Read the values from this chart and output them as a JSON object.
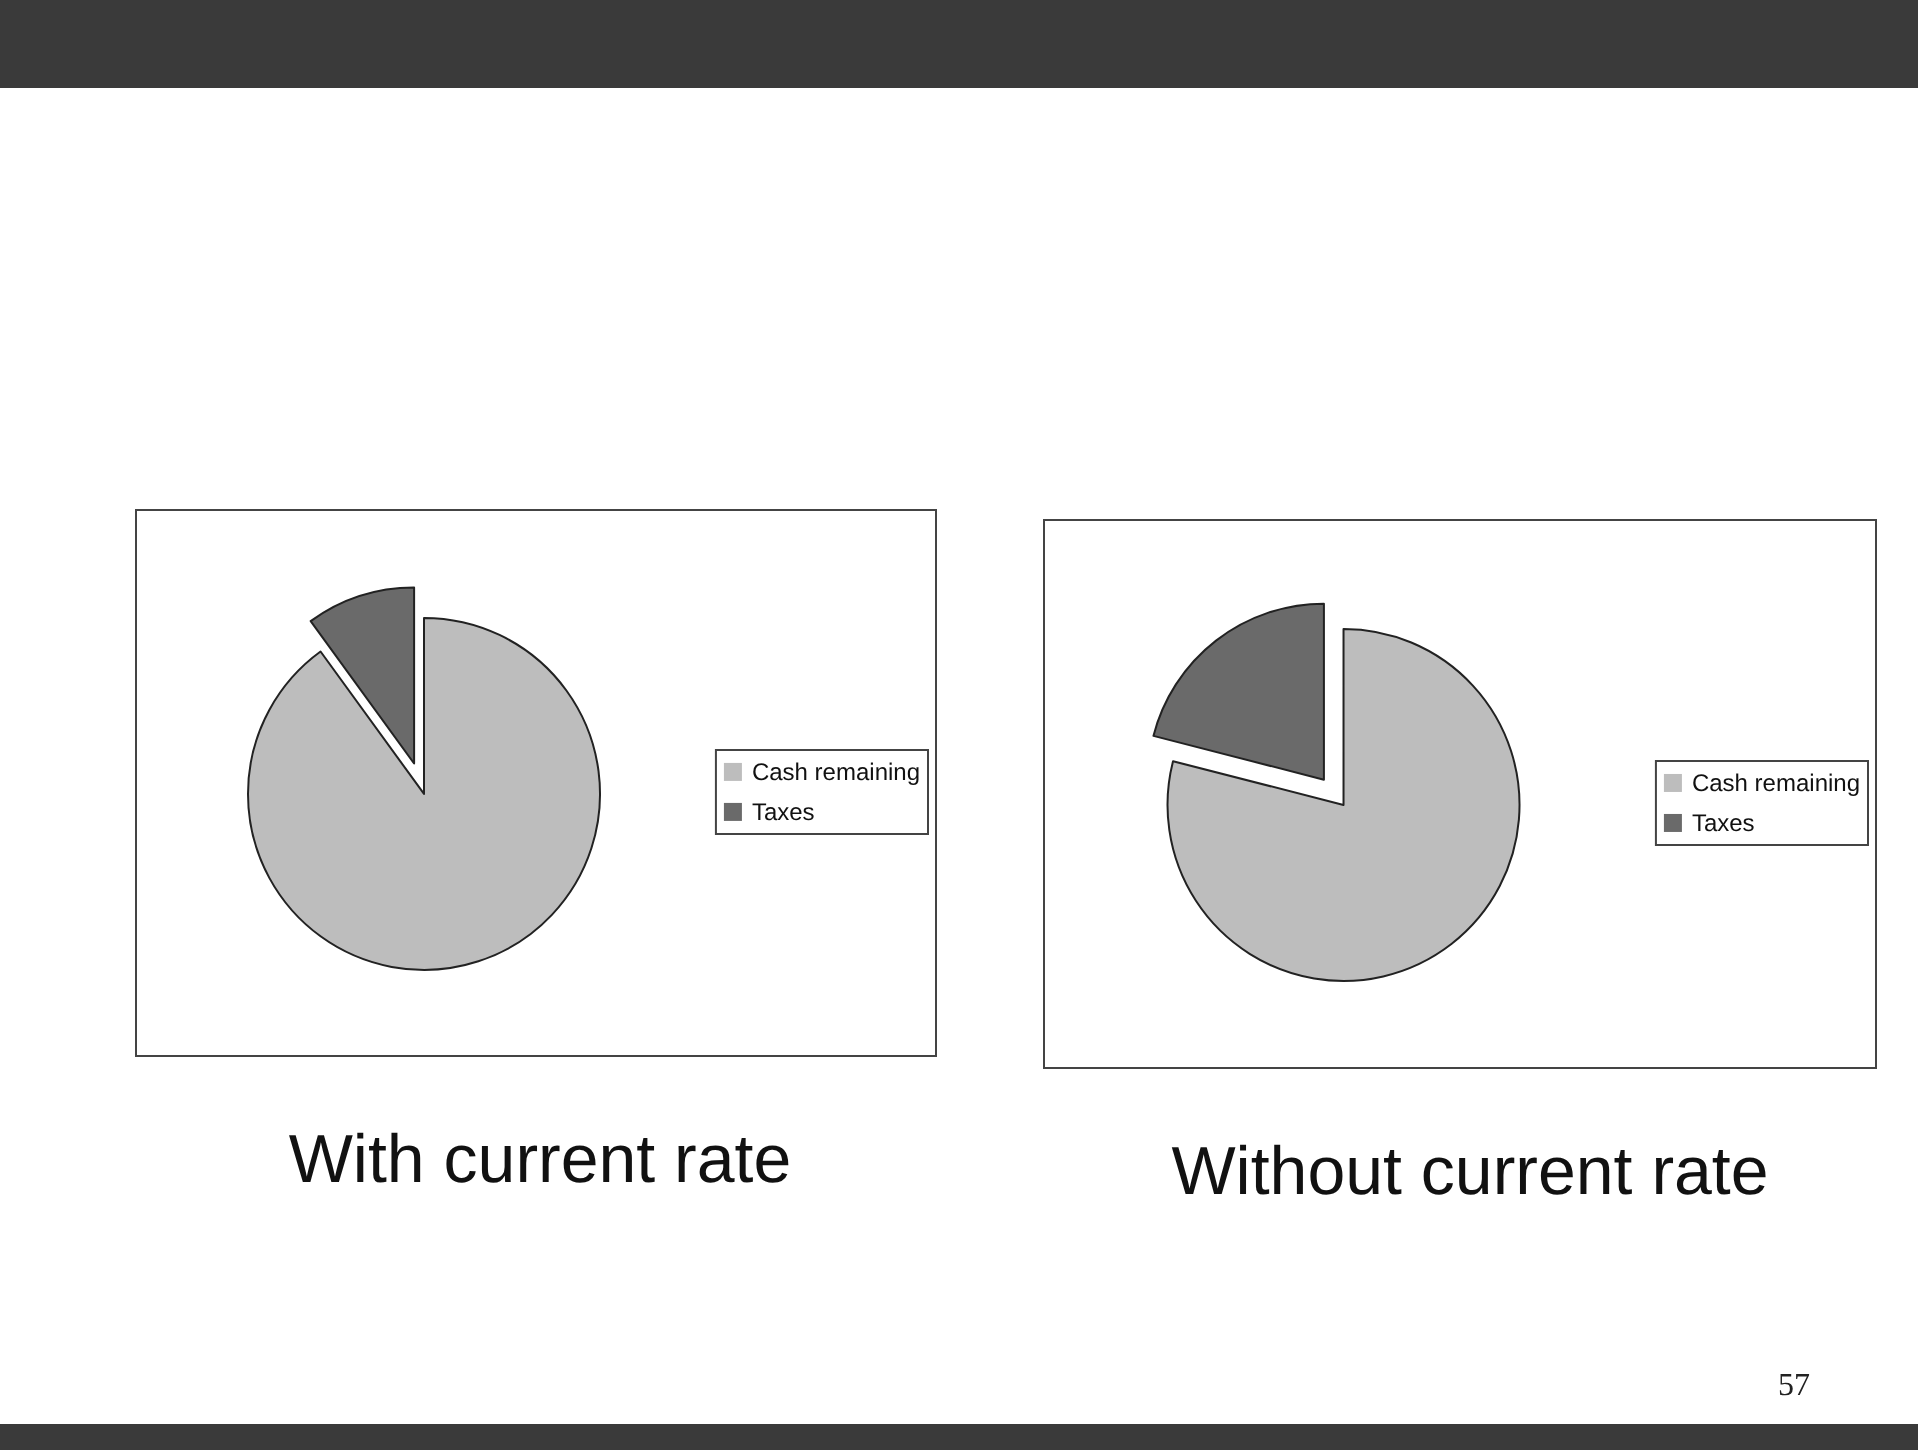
{
  "chart_data": [
    {
      "type": "pie",
      "title": "With current rate",
      "categories": [
        "Cash remaining",
        "Taxes"
      ],
      "values": [
        90,
        10
      ],
      "colors": [
        "#bdbdbd",
        "#6a6a6a"
      ],
      "legend": "right"
    },
    {
      "type": "pie",
      "title": "Without current rate",
      "categories": [
        "Cash remaining",
        "Taxes"
      ],
      "values": [
        79,
        21
      ],
      "colors": [
        "#bdbdbd",
        "#6a6a6a"
      ],
      "legend": "right",
      "annotations": [
        "57"
      ]
    }
  ]
}
